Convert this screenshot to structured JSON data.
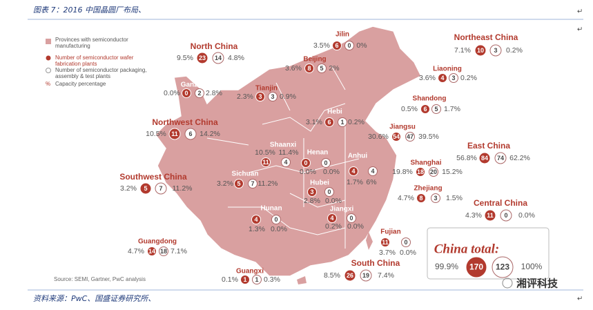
{
  "header": {
    "caption": "图表 7：2016 中国晶圆厂布局、",
    "mark": "↵"
  },
  "top_mark": "↵",
  "legend": [
    {
      "label": "Provinces with semiconductor manufacturing"
    },
    {
      "label": "Number of semiconductor wafer fabrication plants"
    },
    {
      "label": "Number of semiconductor packaging, assembly & test plants"
    },
    {
      "symbol": "%",
      "label": "Capacity percentage"
    }
  ],
  "regions": [
    {
      "name": "North China",
      "fab_pct": "9.5%",
      "fabs": "23",
      "pkg": "14",
      "pkg_pct": "4.8%"
    },
    {
      "name": "Ganzu",
      "fab_pct": "0.0%",
      "fabs": "0",
      "pkg": "2",
      "pkg_pct": "2.8%"
    },
    {
      "name": "Tianjin",
      "fab_pct": "2.3%",
      "fabs": "3",
      "pkg": "3",
      "pkg_pct": "0.9%"
    },
    {
      "name": "Jilin",
      "fab_pct": "3.5%",
      "fabs": "6",
      "pkg": "0",
      "pkg_pct": "0%"
    },
    {
      "name": "Beijing",
      "fab_pct": "3.6%",
      "fabs": "8",
      "pkg": "5",
      "pkg_pct": "2%"
    },
    {
      "name": "Northeast China",
      "fab_pct": "7.1%",
      "fabs": "10",
      "pkg": "3",
      "pkg_pct": "0.2%"
    },
    {
      "name": "Liaoning",
      "fab_pct": "3.6%",
      "fabs": "4",
      "pkg": "3",
      "pkg_pct": "0.2%"
    },
    {
      "name": "Shandong",
      "fab_pct": "0.5%",
      "fabs": "6",
      "pkg": "5",
      "pkg_pct": "1.7%"
    },
    {
      "name": "Hebi",
      "fab_pct": "3.1%",
      "fabs": "6",
      "pkg": "1",
      "pkg_pct": "0.2%"
    },
    {
      "name": "Northwest China",
      "fab_pct": "10.5%",
      "fabs": "11",
      "pkg": "6",
      "pkg_pct": "14.2%"
    },
    {
      "name": "Jiangsu",
      "fab_pct": "30.6%",
      "fabs": "54",
      "pkg": "47",
      "pkg_pct": "39.5%"
    },
    {
      "name": "East China",
      "fab_pct": "56.8%",
      "fabs": "84",
      "pkg": "74",
      "pkg_pct": "62.2%"
    },
    {
      "name": "Shaanxi",
      "fab_pct": "10.5%",
      "fabs": "11",
      "pkg": "4",
      "pkg_pct": "11.4%"
    },
    {
      "name": "Henan",
      "fab_pct": "0.0%",
      "fabs": "0",
      "pkg": "0",
      "pkg_pct": "0.0%"
    },
    {
      "name": "Anhui",
      "fab_pct": "1.7%",
      "fabs": "4",
      "pkg": "4",
      "pkg_pct": "6%"
    },
    {
      "name": "Sichuan",
      "fab_pct": "3.2%",
      "fabs": "5",
      "pkg": "7",
      "pkg_pct": "11.2%"
    },
    {
      "name": "Southwest China",
      "fab_pct": "3.2%",
      "fabs": "5",
      "pkg": "7",
      "pkg_pct": "11.2%"
    },
    {
      "name": "Shanghai",
      "fab_pct": "19.8%",
      "fabs": "18",
      "pkg": "20",
      "pkg_pct": "15.2%"
    },
    {
      "name": "Hubei",
      "fab_pct": "2.8%",
      "fabs": "3",
      "pkg": "0",
      "pkg_pct": "0.0%"
    },
    {
      "name": "Zhejiang",
      "fab_pct": "4.7%",
      "fabs": "8",
      "pkg": "3",
      "pkg_pct": "1.5%"
    },
    {
      "name": "Central China",
      "fab_pct": "4.3%",
      "fabs": "11",
      "pkg": "0",
      "pkg_pct": "0.0%"
    },
    {
      "name": "Jiangxi",
      "fab_pct": "0.2%",
      "fabs": "4",
      "pkg": "0",
      "pkg_pct": "0.0%"
    },
    {
      "name": "Hunan",
      "fab_pct": "1.3%",
      "fabs": "4",
      "pkg": "0",
      "pkg_pct": "0.0%"
    },
    {
      "name": "Fujian",
      "fab_pct": "3.7%",
      "fabs": "11",
      "pkg": "0",
      "pkg_pct": "0.0%"
    },
    {
      "name": "Guangdong",
      "fab_pct": "4.7%",
      "fabs": "14",
      "pkg": "18",
      "pkg_pct": "7.1%"
    },
    {
      "name": "South China",
      "fab_pct": "8.5%",
      "fabs": "26",
      "pkg": "19",
      "pkg_pct": "7.4%"
    },
    {
      "name": "Guangxi",
      "fab_pct": "0.1%",
      "fabs": "1",
      "pkg": "1",
      "pkg_pct": "0.3%"
    }
  ],
  "total": {
    "label": "China total:",
    "fab_pct": "99.9%",
    "fabs": "170",
    "pkg": "123",
    "pkg_pct": "100%"
  },
  "source": "Source: SEMI, Gartner, PwC analysis",
  "watermark": "湘评科技",
  "footer": {
    "caption": "资料来源：PwC、国盛证券研究所、",
    "mark": "↵"
  }
}
